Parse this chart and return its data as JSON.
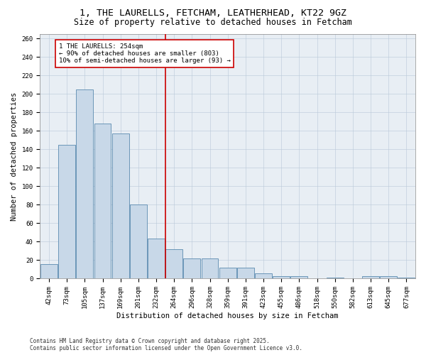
{
  "title1": "1, THE LAURELLS, FETCHAM, LEATHERHEAD, KT22 9GZ",
  "title2": "Size of property relative to detached houses in Fetcham",
  "xlabel": "Distribution of detached houses by size in Fetcham",
  "ylabel": "Number of detached properties",
  "categories": [
    "42sqm",
    "73sqm",
    "105sqm",
    "137sqm",
    "169sqm",
    "201sqm",
    "232sqm",
    "264sqm",
    "296sqm",
    "328sqm",
    "359sqm",
    "391sqm",
    "423sqm",
    "455sqm",
    "486sqm",
    "518sqm",
    "550sqm",
    "582sqm",
    "613sqm",
    "645sqm",
    "677sqm"
  ],
  "values": [
    16,
    145,
    205,
    168,
    157,
    80,
    43,
    32,
    22,
    22,
    12,
    12,
    6,
    3,
    3,
    0,
    1,
    0,
    3,
    3,
    1
  ],
  "bar_color": "#c8d8e8",
  "bar_edge_color": "#5a8ab0",
  "vline_index": 7,
  "vline_color": "#cc0000",
  "annotation_text": "1 THE LAURELLS: 254sqm\n← 90% of detached houses are smaller (803)\n10% of semi-detached houses are larger (93) →",
  "annotation_box_color": "#ffffff",
  "annotation_box_edge": "#cc0000",
  "ylim": [
    0,
    265
  ],
  "yticks": [
    0,
    20,
    40,
    60,
    80,
    100,
    120,
    140,
    160,
    180,
    200,
    220,
    240,
    260
  ],
  "background_color": "#e8eef4",
  "footer1": "Contains HM Land Registry data © Crown copyright and database right 2025.",
  "footer2": "Contains public sector information licensed under the Open Government Licence v3.0.",
  "title1_fontsize": 9.5,
  "title2_fontsize": 8.5,
  "xlabel_fontsize": 7.5,
  "ylabel_fontsize": 7.5,
  "tick_fontsize": 6.5,
  "annotation_fontsize": 6.5,
  "footer_fontsize": 5.5
}
